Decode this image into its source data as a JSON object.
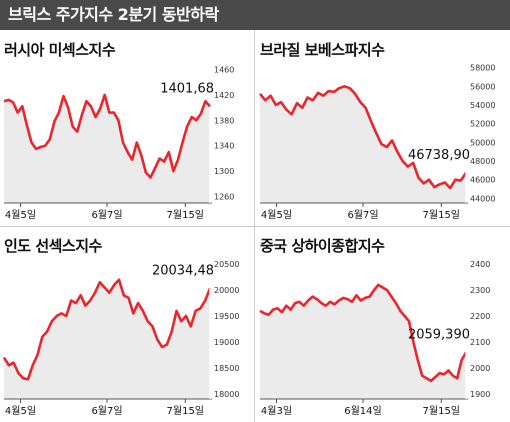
{
  "header": {
    "title": "브릭스 주가지수 2분기 동반하락"
  },
  "colors": {
    "line": "#e8262d",
    "area": "#ebebeb",
    "header_bg": "#4a4a4a"
  },
  "chart_data": [
    {
      "type": "area",
      "title": "러시아 미섹스지수",
      "x_tick_labels": [
        "4월5일",
        "6월7일",
        "7월15일"
      ],
      "y_ticks": [
        1260,
        1300,
        1340,
        1380,
        1420,
        1460
      ],
      "ylim": [
        1250,
        1470
      ],
      "annotation": "1401,68",
      "series": [
        {
          "values": [
            1410,
            1412,
            1408,
            1392,
            1402,
            1372,
            1345,
            1335,
            1338,
            1340,
            1350,
            1378,
            1392,
            1418,
            1400,
            1370,
            1362,
            1388,
            1410,
            1402,
            1385,
            1398,
            1420,
            1392,
            1392,
            1380,
            1345,
            1330,
            1318,
            1345,
            1325,
            1298,
            1290,
            1305,
            1320,
            1315,
            1330,
            1300,
            1318,
            1345,
            1370,
            1385,
            1380,
            1390,
            1410,
            1401.68
          ]
        }
      ]
    },
    {
      "type": "area",
      "title": "브라질 보베스파지수",
      "x_tick_labels": [
        "4월5일",
        "6월7일",
        "7월15일"
      ],
      "y_ticks": [
        44000,
        46000,
        48000,
        50000,
        52000,
        54000,
        56000,
        58000
      ],
      "ylim": [
        43500,
        58500
      ],
      "annotation": "46738,90",
      "series": [
        {
          "values": [
            55200,
            54500,
            55000,
            54000,
            54300,
            53500,
            53000,
            54200,
            53700,
            54800,
            54500,
            55300,
            55000,
            55500,
            55400,
            55800,
            56000,
            55800,
            55200,
            54300,
            53700,
            52300,
            51000,
            49800,
            49500,
            50200,
            49000,
            48000,
            47400,
            47800,
            46200,
            45600,
            46000,
            45200,
            45500,
            45700,
            45100,
            46000,
            45900,
            46738.9
          ]
        }
      ]
    },
    {
      "type": "area",
      "title": "인도 선섹스지수",
      "x_tick_labels": [
        "4월5일",
        "6월7일",
        "7월15일"
      ],
      "y_ticks": [
        18000,
        18500,
        19000,
        19500,
        20000,
        20500
      ],
      "ylim": [
        17900,
        20600
      ],
      "annotation": "20034,48",
      "series": [
        {
          "values": [
            18700,
            18550,
            18600,
            18400,
            18300,
            18280,
            18550,
            18750,
            19100,
            19200,
            19400,
            19500,
            19550,
            19500,
            19800,
            19750,
            19900,
            19700,
            19800,
            19950,
            20150,
            20050,
            19950,
            20100,
            20200,
            19900,
            19850,
            19550,
            19750,
            19600,
            19400,
            19300,
            19050,
            18900,
            18950,
            19200,
            19600,
            19400,
            19500,
            19300,
            19600,
            19650,
            19800,
            20034.48
          ]
        }
      ]
    },
    {
      "type": "area",
      "title": "중국 상하이종합지수",
      "x_tick_labels": [
        "4월3일",
        "6월14일",
        "7월15일"
      ],
      "y_ticks": [
        1900,
        2000,
        2100,
        2200,
        2300,
        2400
      ],
      "ylim": [
        1880,
        2420
      ],
      "annotation": "2059,390",
      "series": [
        {
          "values": [
            2220,
            2210,
            2205,
            2225,
            2230,
            2215,
            2240,
            2225,
            2250,
            2255,
            2240,
            2260,
            2275,
            2265,
            2250,
            2240,
            2255,
            2245,
            2260,
            2270,
            2265,
            2255,
            2280,
            2260,
            2270,
            2275,
            2300,
            2320,
            2310,
            2300,
            2275,
            2250,
            2220,
            2200,
            2180,
            2100,
            2030,
            1970,
            1960,
            1950,
            1965,
            1980,
            1975,
            1990,
            1970,
            1960,
            2030,
            2059.39
          ]
        }
      ]
    }
  ]
}
